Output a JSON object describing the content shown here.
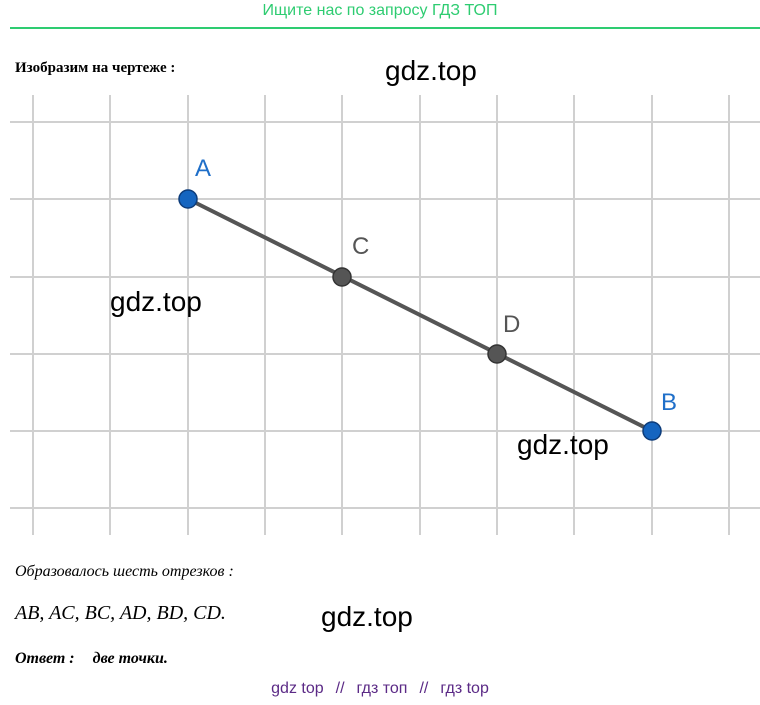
{
  "header": {
    "text": "Ищите нас по запросу ГДЗ ТОП"
  },
  "intro": "Изобразим на чертеже :",
  "watermarks": [
    "gdz.top",
    "gdz.top",
    "gdz.top",
    "gdz.top"
  ],
  "figure": {
    "points": [
      {
        "label": "A"
      },
      {
        "label": "C"
      },
      {
        "label": "D"
      },
      {
        "label": "B"
      }
    ]
  },
  "result": {
    "text": "Образовалось шесть отрезков :",
    "segments": "AB, AC, BC, AD, BD, CD."
  },
  "answer": {
    "label": "Ответ :",
    "text": "две точки."
  },
  "footer": {
    "links": [
      "gdz top",
      "гдз топ",
      "гдз top"
    ],
    "separator": "//"
  }
}
